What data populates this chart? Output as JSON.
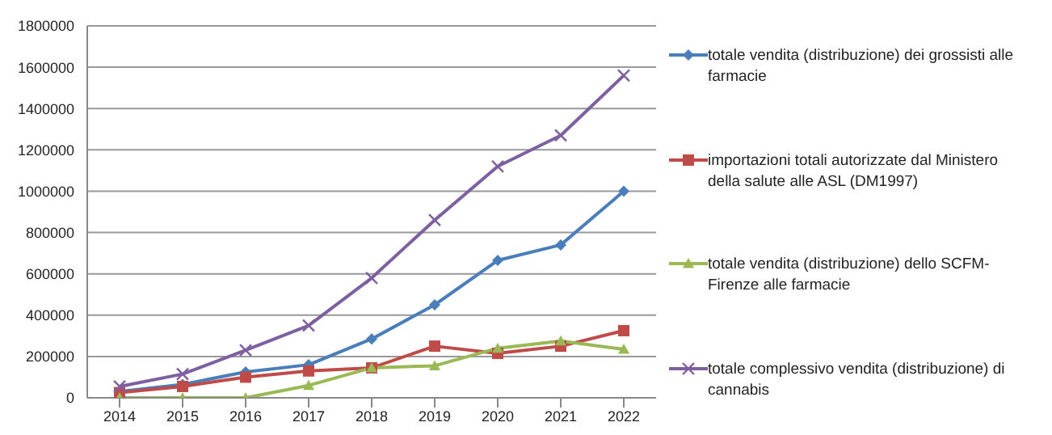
{
  "chart_data": {
    "type": "line",
    "categories": [
      "2014",
      "2015",
      "2016",
      "2017",
      "2018",
      "2019",
      "2020",
      "2021",
      "2022"
    ],
    "ylim": [
      0,
      1800000
    ],
    "yticks": [
      0,
      200000,
      400000,
      600000,
      800000,
      1000000,
      1200000,
      1400000,
      1600000,
      1800000
    ],
    "grid": "y",
    "legend": "right",
    "series": [
      {
        "name": "totale vendita (distribuzione) dei grossisti alle farmacie",
        "color": "#4a7ebb",
        "marker": "diamond",
        "values": [
          30000,
          65000,
          125000,
          160000,
          285000,
          450000,
          665000,
          740000,
          1000000
        ]
      },
      {
        "name": "importazioni totali autorizzate dal Ministero della salute alle ASL (DM1997)",
        "color": "#be4b48",
        "marker": "square",
        "values": [
          25000,
          55000,
          100000,
          130000,
          145000,
          250000,
          215000,
          250000,
          325000
        ]
      },
      {
        "name": "totale vendita (distribuzione) dello SCFM-Firenze alle farmacie",
        "color": "#98b954",
        "marker": "triangle",
        "values": [
          0,
          0,
          0,
          60000,
          145000,
          155000,
          240000,
          275000,
          235000
        ]
      },
      {
        "name": "totale complessivo vendita (distribuzione) di cannabis",
        "color": "#7d60a0",
        "marker": "cross",
        "values": [
          55000,
          115000,
          230000,
          350000,
          580000,
          860000,
          1120000,
          1270000,
          1560000
        ]
      }
    ]
  }
}
